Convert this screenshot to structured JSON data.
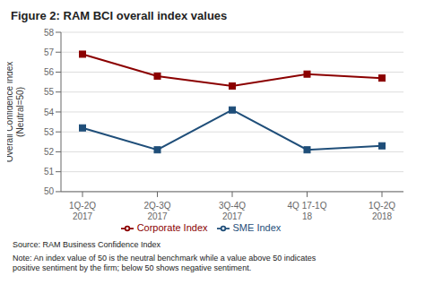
{
  "chart_data": {
    "type": "line",
    "title": "Figure 2: RAM BCI overall index values",
    "y_label": "Overall Confidence Index\n(Neutral=50)",
    "categories": [
      "1Q-2Q\n2017",
      "2Q-3Q\n2017",
      "3Q-4Q\n2017",
      "4Q 17-1Q\n18",
      "1Q-2Q\n2018"
    ],
    "series": [
      {
        "name": "Corporate Index",
        "color": "#8B0000",
        "marker": "square",
        "values": [
          56.9,
          55.8,
          55.3,
          55.9,
          55.7
        ]
      },
      {
        "name": "SME Index",
        "color": "#1F4E79",
        "marker": "square",
        "values": [
          53.2,
          52.1,
          54.1,
          52.1,
          52.3
        ]
      }
    ],
    "ylim": [
      50,
      58
    ],
    "yticks": [
      50,
      51,
      52,
      53,
      54,
      55,
      56,
      57,
      58
    ],
    "grid": true,
    "legend": "bottom",
    "annotations": [
      "Source: RAM Business Confidence Index",
      "Note: An index value of 50 is the neutral benchmark while a value above 50 indicates\npositive sentiment by the firm; below 50 shows negative sentiment."
    ]
  }
}
